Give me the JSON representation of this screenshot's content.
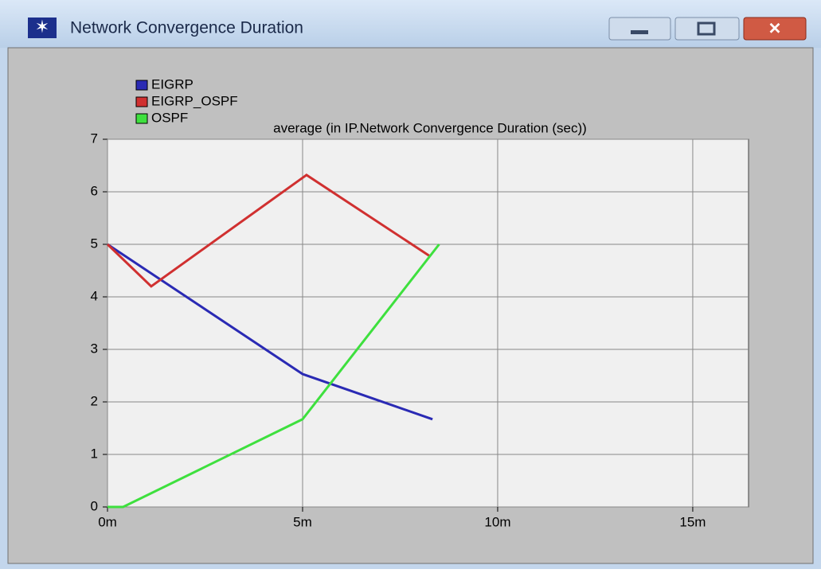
{
  "window": {
    "title": "Network Convergence Duration"
  },
  "chart_data": {
    "type": "line",
    "title": "average (in IP.Network Convergence Duration (sec))",
    "series": [
      {
        "name": "EIGRP",
        "color": "#2a2ab4",
        "x": [
          0,
          5,
          8.33
        ],
        "values": [
          5.0,
          2.53,
          1.67
        ]
      },
      {
        "name": "EIGRP_OSPF",
        "color": "#d03030",
        "x": [
          0,
          1.12,
          5.1,
          8.27
        ],
        "values": [
          5.0,
          4.2,
          6.32,
          4.77
        ]
      },
      {
        "name": "OSPF",
        "color": "#3ee03e",
        "x": [
          0,
          0.4,
          5,
          8.5
        ],
        "values": [
          0,
          0,
          1.67,
          5.0
        ]
      }
    ],
    "xlim": [
      0,
      16.43
    ],
    "xticks": [
      {
        "value": 0,
        "label": "0m"
      },
      {
        "value": 5,
        "label": "5m"
      },
      {
        "value": 10,
        "label": "10m"
      },
      {
        "value": 15,
        "label": "15m"
      }
    ],
    "ylim": [
      0,
      7
    ],
    "yticks": [
      0,
      1,
      2,
      3,
      4,
      5,
      6,
      7
    ],
    "grid": true
  }
}
